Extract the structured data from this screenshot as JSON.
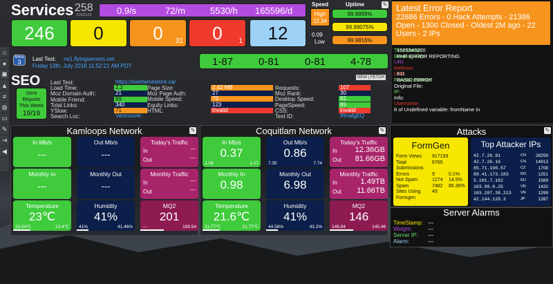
{
  "colors": {
    "green": "#3fcb3c",
    "yellow": "#f7e600",
    "orange": "#f7941d",
    "red": "#ef3a2d",
    "blue": "#9dd1f5",
    "purple": "#b44be1",
    "navy": "#0c1f4a",
    "maroon": "#8e1a52"
  },
  "services": {
    "title": "Services",
    "count": "258",
    "sub_count": "31392129",
    "rates": [
      "0.9/s",
      "72/m",
      "5530/h",
      "165596/d"
    ],
    "statuses": [
      {
        "big": "246",
        "small": ""
      },
      {
        "big": "0",
        "small": ""
      },
      {
        "big": "0",
        "small": "31"
      },
      {
        "big": "0",
        "small": "1"
      },
      {
        "big": "12",
        "small": ""
      }
    ],
    "speed_label": "Speed",
    "speed_high": "High",
    "speed_high_value": "12.34",
    "speed_low_value": "0.09",
    "speed_low": "Low",
    "uptime_label": "Uptime",
    "uptime": [
      "99.9999%",
      "99.99075%",
      "99.9816%"
    ],
    "active_label": "Active",
    "active_value": "3",
    "last_test_label": "Last Test:",
    "last_test_host": "ns1.flyingservers.net",
    "last_test_time": "Friday 13th, July 2018 11:52:21 AM PDT",
    "latency": [
      "1-87",
      "0-81",
      "0-81",
      "4-78"
    ]
  },
  "seo": {
    "title": "SEO",
    "new_fetch": "NEW | FETCH",
    "sent_reports": "Sent Reports This Week",
    "sent_count": "19/19",
    "col1_labels": [
      "Last Test:",
      "Load Time:",
      "Moz Domain Auth:",
      "Mobile Friend:",
      "Total Links:",
      "YSlow:",
      "Search Loc:"
    ],
    "col1_values": [
      "https://swirlwinestore.ca/",
      "2.2",
      "21",
      "99",
      "340",
      "71",
      "Vancouver"
    ],
    "col2_labels": [
      "Page Size:",
      "Moz Page Auth:",
      "Mobile Speed:",
      "Equity Links:",
      "HTML:"
    ],
    "col2_values": [
      "2.42 MB",
      "27",
      "70",
      "123",
      "invalid"
    ],
    "col3_labels": [
      "Requests:",
      "Moz Rank:",
      "Desktop Speed:",
      "PageSpeed:",
      "CSS:",
      "Test ID:"
    ],
    "col3_values": [
      "107",
      "30",
      "82",
      "85",
      "invalid",
      "fRnafgEQ"
    ]
  },
  "error_report": {
    "title": "Latest Error Report",
    "summary": "22686 Errors - 0 Hack Attempts - 21386 Open - 1300 Closed - Oldest 2M ago - 22 Users - 2 IPs",
    "labels": [
      "TimeStamp:",
      "Running File:",
      "URI:",
      "Referrer:",
      "Line:",
      "Function Name:",
      "Original File:",
      "IP:",
      "Info:",
      "Username:"
    ],
    "values": [
      "1526343200",
      "PHP ERROR REPORTING",
      "",
      "",
      "611",
      "BASIC ERROR",
      "",
      "",
      "",
      ""
    ],
    "message": "8 of Undefined variable: fromName in"
  },
  "kamloops": {
    "title": "Kamloops Network",
    "in_mbs": {
      "label": "In Mb/s",
      "value": "---"
    },
    "out_mbs": {
      "label": "Out Mb/s",
      "value": "---"
    },
    "traffic": {
      "label": "Today's Traffic",
      "in_label": "In",
      "in_value": "---",
      "out_label": "Out",
      "out_value": "---"
    },
    "monthly_in": {
      "label": "Monthly In",
      "value": "---"
    },
    "monthly_out": {
      "label": "Monthly Out",
      "value": "---"
    },
    "monthly_traffic": {
      "label": "Monthly Traffic",
      "in_label": "In",
      "in_value": "---",
      "out_label": "Out",
      "out_value": "---"
    },
    "temp": {
      "label": "Temperature",
      "value": "23℃",
      "min": "23.04℃",
      "max": "23.4℃",
      "level": 0.3
    },
    "humidity": {
      "label": "Humidity",
      "value": "41%",
      "min": "41%",
      "max": "41.46%",
      "level": 0.2
    },
    "mq2": {
      "label": "MQ2",
      "value": "201",
      "min": "---",
      "max": "199.54",
      "level": 0.4
    }
  },
  "coquitlam": {
    "title": "Coquitlam Network",
    "in_mbs": {
      "label": "In Mb/s",
      "value": "0.37",
      "min": "1.08",
      "max": "1.17"
    },
    "out_mbs": {
      "label": "Out Mb/s",
      "value": "0.86",
      "min": "7.35",
      "max": "7.74"
    },
    "traffic": {
      "label": "Today's Traffic",
      "in_label": "In",
      "in_value": "12.36GB",
      "out_label": "Out",
      "out_value": "81.66GB"
    },
    "monthly_in": {
      "label": "Monthly In",
      "value": "0.98"
    },
    "monthly_out": {
      "label": "Monthly Out",
      "value": "6.98"
    },
    "monthly_traffic": {
      "label": "Monthly Traffic",
      "in_label": "In",
      "in_value": "1.49TB",
      "out_label": "Out",
      "out_value": "11.66TB"
    },
    "temp": {
      "label": "Temperature",
      "value": "21.6℃",
      "min": "21.77℃",
      "max": "21.77℃",
      "level": 0.3
    },
    "humidity": {
      "label": "Humidity",
      "value": "41%",
      "min": "44.58%",
      "max": "43.2%",
      "level": 0.2
    },
    "mq2": {
      "label": "MQ2",
      "value": "146",
      "min": "146.84",
      "max": "145.46",
      "level": 0.4
    }
  },
  "attacks": {
    "title": "Attacks",
    "formgen_title": "FormGen",
    "formgen_rows": [
      [
        "Form Views",
        "917193",
        ""
      ],
      [
        "Total",
        "8765",
        ""
      ],
      [
        "Submissions",
        "",
        ""
      ],
      [
        "Errors",
        "9",
        "0.1%"
      ],
      [
        "Not Spam",
        "1274",
        "14.5%"
      ],
      [
        "Spam",
        "7482",
        "85.36%"
      ],
      [
        "Sites Using",
        "49",
        ""
      ],
      [
        "Formgen",
        "",
        ""
      ]
    ],
    "top_title": "Top Attacker IPs",
    "top_rows": [
      [
        "42.7.26.91",
        "CN",
        "28259"
      ],
      [
        "42.7.26.16",
        "CN",
        "14913"
      ],
      [
        "85.71.100.57",
        "CZ",
        "1708"
      ],
      [
        "89.41.173.183",
        "RO",
        "1251"
      ],
      [
        "5.101.7.162",
        "RU",
        "1569"
      ],
      [
        "103.99.0.25",
        "VN",
        "1420"
      ],
      [
        "103.207.38.213",
        "VN",
        "1299"
      ],
      [
        "42.144.128.3",
        "JP",
        "1287"
      ]
    ]
  },
  "alarms": {
    "title": "Server Alarms",
    "labels": [
      "TimeStamp:",
      "Weight:",
      "Server IP:",
      "Alarm:"
    ],
    "values": [
      "---",
      "---",
      "---",
      "---"
    ]
  }
}
